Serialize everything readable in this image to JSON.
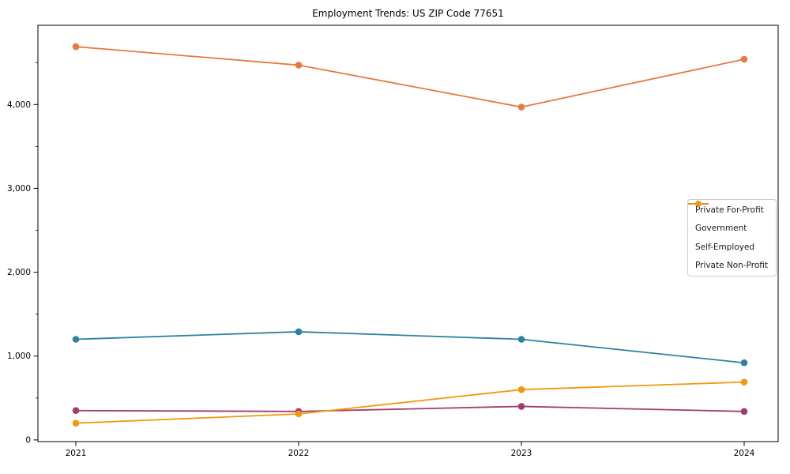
{
  "figure": {
    "title": "Employment Trends: US ZIP Code 77651"
  },
  "chart_data": {
    "type": "line",
    "title": "Employment Trends: US ZIP Code 77651",
    "categories": [
      "2021",
      "2022",
      "2023",
      "2024"
    ],
    "series": [
      {
        "name": "Private For-Profit",
        "color": "#E8783C",
        "values": [
          4690,
          4470,
          3970,
          4540
        ]
      },
      {
        "name": "Government",
        "color": "#2D81A0",
        "values": [
          1200,
          1290,
          1200,
          920
        ]
      },
      {
        "name": "Self-Employed",
        "color": "#A23B72",
        "values": [
          350,
          340,
          400,
          340
        ]
      },
      {
        "name": "Private Non-Profit",
        "color": "#F0990E",
        "values": [
          200,
          310,
          600,
          690
        ]
      }
    ],
    "xlabel": "",
    "ylabel": "",
    "ylim": [
      0,
      4940
    ],
    "yticks": [
      0,
      1000,
      2000,
      3000,
      4000
    ],
    "ytick_labels": [
      "0",
      "1,000",
      "2,000",
      "3,000",
      "4,000"
    ],
    "minor_tick_interval": 500,
    "grid": false,
    "legend_position": "center-right",
    "marker": "circle",
    "text_color": "#000000",
    "frame_color": "#000000"
  }
}
